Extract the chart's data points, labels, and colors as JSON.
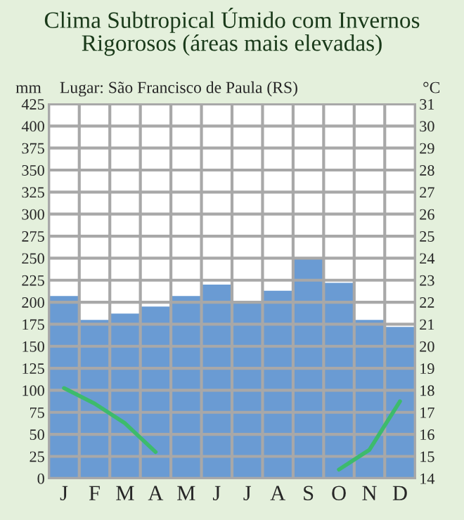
{
  "chart_data": {
    "type": "bar",
    "title": "Clima Subtropical Úmido com Invernos Rigorosos (áreas mais elevadas)",
    "subtitle": "Lugar: São Francisco de Paula (RS)",
    "ylabel": "mm",
    "y2label": "°C",
    "categories": [
      "J",
      "F",
      "M",
      "A",
      "M",
      "J",
      "J",
      "A",
      "S",
      "O",
      "N",
      "D"
    ],
    "series": [
      {
        "color": "#6a9bd3",
        "values": [
          207,
          180,
          187,
          195,
          207,
          220,
          200,
          213,
          250,
          222,
          180,
          172
        ]
      },
      {
        "type": "line",
        "axis": "y2",
        "color": "#3dbb6c",
        "values": [
          18.1,
          17.4,
          16.5,
          15.2,
          null,
          null,
          null,
          null,
          null,
          14.4,
          15.3,
          17.5
        ]
      }
    ],
    "ylim": [
      0,
      425
    ],
    "yticks": [
      0,
      25,
      50,
      75,
      100,
      125,
      150,
      175,
      200,
      225,
      250,
      275,
      300,
      325,
      350,
      375,
      400,
      425
    ],
    "y2lim": [
      14,
      31
    ],
    "y2ticks": [
      14,
      15,
      16,
      17,
      18,
      19,
      20,
      21,
      22,
      23,
      24,
      25,
      26,
      27,
      28,
      29,
      30,
      31
    ],
    "grid": true,
    "line_style": "solid",
    "marker": "none"
  }
}
